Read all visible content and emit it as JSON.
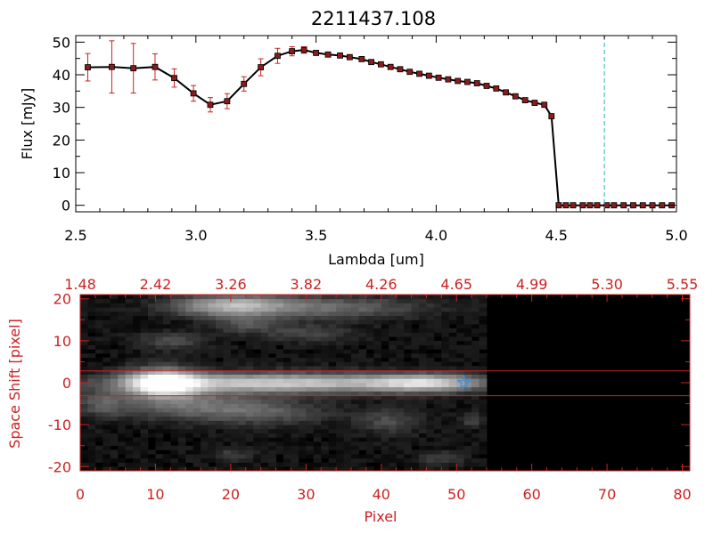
{
  "colors": {
    "background": "#ffffff",
    "axis": "#000000",
    "data_line": "#000000",
    "marker_fill": "#8b1a1a",
    "errorbar": "#cc2222",
    "cutoff_line": "#2ab0c8",
    "image_frame": "#cc2222",
    "image_background": "#000000",
    "slit_lines": "#cc2222",
    "star_marker": "#3a8fe0"
  },
  "chart_data": [
    {
      "type": "line",
      "title": "2211437.108",
      "xlabel": "Lambda [um]",
      "ylabel": "Flux [mJy]",
      "xlim": [
        2.5,
        5.0
      ],
      "ylim": [
        -2,
        52
      ],
      "x_ticks": [
        2.5,
        3.0,
        3.5,
        4.0,
        4.5,
        5.0
      ],
      "x_tick_labels": [
        "2.5",
        "3.0",
        "3.5",
        "4.0",
        "4.5",
        "5.0"
      ],
      "y_ticks": [
        0,
        10,
        20,
        30,
        40,
        50
      ],
      "y_tick_labels": [
        "0",
        "10",
        "20",
        "30",
        "40",
        "50"
      ],
      "cutoff_wavelength": 4.7,
      "series": [
        {
          "marker": "square",
          "x": [
            2.55,
            2.65,
            2.74,
            2.83,
            2.91,
            2.99,
            3.06,
            3.13,
            3.2,
            3.27,
            3.34,
            3.4,
            3.45,
            3.5,
            3.55,
            3.6,
            3.64,
            3.69,
            3.73,
            3.77,
            3.81,
            3.85,
            3.89,
            3.93,
            3.97,
            4.01,
            4.05,
            4.09,
            4.13,
            4.17,
            4.21,
            4.25,
            4.29,
            4.33,
            4.37,
            4.41,
            4.45,
            4.48,
            4.51,
            4.54,
            4.57,
            4.61,
            4.64,
            4.67,
            4.71,
            4.74,
            4.78,
            4.82,
            4.86,
            4.9,
            4.94,
            4.98
          ],
          "y": [
            42.3,
            42.4,
            42.0,
            42.4,
            39.0,
            34.3,
            30.8,
            31.9,
            37.2,
            42.3,
            45.8,
            47.2,
            47.6,
            46.7,
            46.2,
            45.9,
            45.4,
            44.8,
            43.9,
            43.2,
            42.4,
            41.7,
            40.9,
            40.3,
            39.7,
            39.1,
            38.6,
            38.1,
            37.8,
            37.4,
            36.6,
            35.8,
            34.6,
            33.4,
            32.2,
            31.4,
            30.8,
            27.3,
            0,
            0,
            0,
            0,
            0,
            0,
            0,
            0,
            0,
            0,
            0,
            0,
            0,
            0
          ],
          "yerr": [
            4.2,
            8.0,
            7.6,
            4.0,
            2.8,
            2.4,
            2.2,
            2.3,
            2.2,
            2.6,
            2.3,
            1.4,
            1.0,
            0.5,
            0.4,
            0.4,
            0.4,
            0.4,
            0.4,
            0.4,
            0.4,
            0.4,
            0.4,
            0.4,
            0.4,
            0.4,
            0.4,
            0.4,
            0.4,
            0.4,
            0.4,
            0.4,
            0.4,
            0.4,
            0.4,
            0.4,
            0.4,
            0.4,
            0.3,
            0.3,
            0.3,
            0.3,
            0.3,
            0.3,
            0.3,
            0.3,
            0.3,
            0.3,
            0.3,
            0.3,
            0.3,
            0.3
          ]
        }
      ]
    },
    {
      "type": "heatmap",
      "xlabel": "Pixel",
      "ylabel": "Space Shift [pixel]",
      "xlim": [
        0,
        81
      ],
      "ylim": [
        -21,
        21
      ],
      "x_ticks": [
        0,
        10,
        20,
        30,
        40,
        50,
        60,
        70,
        80
      ],
      "x_tick_labels": [
        "0",
        "10",
        "20",
        "30",
        "40",
        "50",
        "60",
        "70",
        "80"
      ],
      "y_ticks": [
        -20,
        -10,
        0,
        10,
        20
      ],
      "y_tick_labels": [
        "-20",
        "-10",
        "0",
        "10",
        "20"
      ],
      "top_axis_ticks": [
        0,
        10,
        20,
        30,
        40,
        50,
        60,
        70,
        80
      ],
      "top_axis_labels": [
        "1.48",
        "2.42",
        "3.26",
        "3.82",
        "4.26",
        "4.65",
        "4.99",
        "5.30",
        "5.55"
      ],
      "aperture_lines": [
        2.8,
        -3.1
      ],
      "star_marker": {
        "x": 51,
        "y": 0
      },
      "sources": [
        {
          "cx": 11,
          "cy": 0,
          "sx": 3.2,
          "sy": 2.2,
          "amp": 1.0
        },
        {
          "cx": 26,
          "cy": 0,
          "sx": 14,
          "sy": 1.6,
          "amp": 0.72
        },
        {
          "cx": 46,
          "cy": 0,
          "sx": 5,
          "sy": 1.4,
          "amp": 0.6
        },
        {
          "cx": 20,
          "cy": 18.5,
          "sx": 5,
          "sy": 1.7,
          "amp": 0.55
        },
        {
          "cx": 32,
          "cy": 18,
          "sx": 9,
          "sy": 1.8,
          "amp": 0.3
        },
        {
          "cx": 14,
          "cy": -5,
          "sx": 7,
          "sy": 2.4,
          "amp": 0.28
        },
        {
          "cx": 24,
          "cy": -7,
          "sx": 6,
          "sy": 2.0,
          "amp": 0.22
        },
        {
          "cx": 12,
          "cy": 10,
          "sx": 3,
          "sy": 1.5,
          "amp": 0.18
        },
        {
          "cx": 30,
          "cy": 12,
          "sx": 4,
          "sy": 1.5,
          "amp": 0.16
        },
        {
          "cx": 41,
          "cy": -9,
          "sx": 3,
          "sy": 2,
          "amp": 0.18
        },
        {
          "cx": 22,
          "cy": 14,
          "sx": 3,
          "sy": 1.5,
          "amp": 0.2
        },
        {
          "cx": 48,
          "cy": -18,
          "sx": 2,
          "sy": 1.2,
          "amp": 0.14
        },
        {
          "cx": 20,
          "cy": -17,
          "sx": 2,
          "sy": 1.2,
          "amp": 0.12
        },
        {
          "cx": 52,
          "cy": -9,
          "sx": 1.2,
          "sy": 1.2,
          "amp": 0.14
        },
        {
          "cx": 3,
          "cy": -5,
          "sx": 2,
          "sy": 2,
          "amp": 0.2
        }
      ],
      "data_pixel_limit": 54
    }
  ]
}
